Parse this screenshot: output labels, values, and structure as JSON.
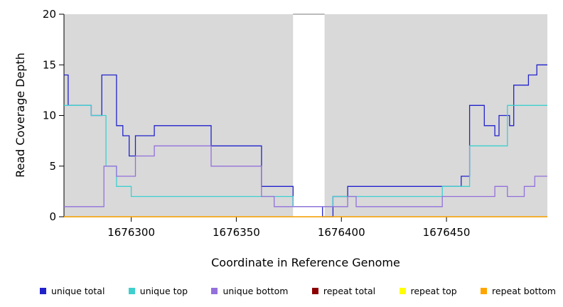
{
  "chart_data": {
    "type": "line",
    "step": true,
    "title": "",
    "xlabel": "Coordinate in Reference Genome",
    "ylabel": "Read Coverage Depth",
    "xlim": [
      1676268,
      1676498
    ],
    "ylim": [
      0,
      20
    ],
    "x_ticks": [
      1676300,
      1676350,
      1676400,
      1676450
    ],
    "y_ticks": [
      0,
      5,
      10,
      15,
      20
    ],
    "grid": false,
    "legend_position": "bottom",
    "shade_color": "#D9D9D9",
    "shaded_regions": [
      [
        1676268,
        1676377
      ],
      [
        1676392,
        1676498
      ]
    ],
    "gap_region": [
      1676377,
      1676392
    ],
    "series": [
      {
        "name": "unique total",
        "color": "#2222CC",
        "points": [
          [
            1676268,
            14
          ],
          [
            1676270,
            11
          ],
          [
            1676281,
            10
          ],
          [
            1676286,
            14
          ],
          [
            1676293,
            9
          ],
          [
            1676296,
            8
          ],
          [
            1676299,
            6
          ],
          [
            1676302,
            8
          ],
          [
            1676311,
            9
          ],
          [
            1676338,
            7
          ],
          [
            1676362,
            3
          ],
          [
            1676377,
            1
          ],
          [
            1676391,
            0
          ],
          [
            1676396,
            2
          ],
          [
            1676403,
            3
          ],
          [
            1676457,
            4
          ],
          [
            1676461,
            11
          ],
          [
            1676468,
            9
          ],
          [
            1676473,
            8
          ],
          [
            1676475,
            10
          ],
          [
            1676480,
            9
          ],
          [
            1676482,
            13
          ],
          [
            1676489,
            14
          ],
          [
            1676493,
            15
          ],
          [
            1676498,
            15
          ]
        ]
      },
      {
        "name": "unique top",
        "color": "#3ECFCF",
        "points": [
          [
            1676268,
            11
          ],
          [
            1676281,
            10
          ],
          [
            1676288,
            5
          ],
          [
            1676293,
            3
          ],
          [
            1676300,
            2
          ],
          [
            1676377,
            1
          ],
          [
            1676396,
            2
          ],
          [
            1676448,
            3
          ],
          [
            1676461,
            7
          ],
          [
            1676479,
            11
          ],
          [
            1676498,
            11
          ]
        ]
      },
      {
        "name": "unique bottom",
        "color": "#9370DB",
        "points": [
          [
            1676268,
            1
          ],
          [
            1676287,
            5
          ],
          [
            1676293,
            4
          ],
          [
            1676302,
            6
          ],
          [
            1676311,
            7
          ],
          [
            1676338,
            5
          ],
          [
            1676362,
            2
          ],
          [
            1676368,
            1
          ],
          [
            1676403,
            2
          ],
          [
            1676407,
            1
          ],
          [
            1676448,
            2
          ],
          [
            1676473,
            3
          ],
          [
            1676479,
            2
          ],
          [
            1676487,
            3
          ],
          [
            1676492,
            4
          ],
          [
            1676498,
            4
          ]
        ]
      },
      {
        "name": "repeat total",
        "color": "#8B0000",
        "points": [
          [
            1676268,
            0
          ],
          [
            1676498,
            0
          ]
        ]
      },
      {
        "name": "repeat top",
        "color": "#FFFF00",
        "points": [
          [
            1676268,
            0
          ],
          [
            1676498,
            0
          ]
        ]
      },
      {
        "name": "repeat bottom",
        "color": "#FFA500",
        "points": [
          [
            1676268,
            0
          ],
          [
            1676498,
            0
          ]
        ]
      }
    ]
  }
}
